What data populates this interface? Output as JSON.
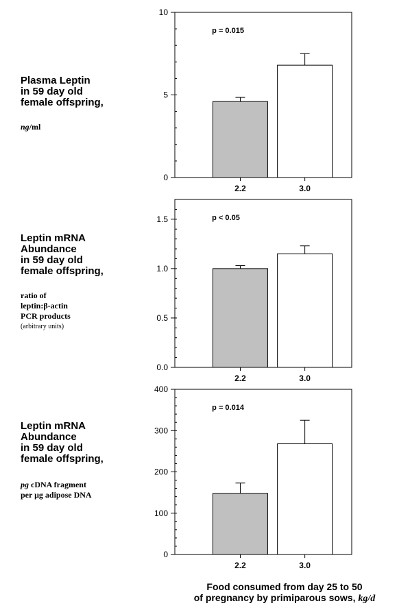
{
  "panels": [
    {
      "title_lines": [
        "Plasma Leptin",
        "in 59 day old",
        "female offspring,"
      ],
      "unit_italic": "ng",
      "unit_rest": "/ml"
    },
    {
      "title_lines": [
        "Leptin mRNA",
        "Abundance",
        "in 59 day old",
        "female offspring,"
      ],
      "unit_lines": [
        "ratio of",
        "leptin:β-actin",
        "PCR products"
      ],
      "unit_note": "(arbitrary units)"
    },
    {
      "title_lines": [
        "Leptin mRNA",
        "Abundance",
        "in 59 day old",
        "female offspring,"
      ],
      "unit_line1_italic": "pg",
      "unit_line1_rest": " cDNA fragment",
      "unit_line2": "per μg adipose DNA"
    }
  ],
  "x_title_line1": "Food consumed from day 25 to 50",
  "x_title_line2": "of pregnancy by primiparous sows,",
  "x_title_unit": "kg/d",
  "colors": {
    "bar_2_2": "#c0c0c0",
    "bar_3_0": "#ffffff",
    "stroke": "#000000"
  },
  "chart_data": [
    {
      "type": "bar",
      "categories": [
        "2.2",
        "3.0"
      ],
      "values": [
        4.6,
        6.8
      ],
      "errors": [
        0.25,
        0.7
      ],
      "ylim": [
        0,
        10
      ],
      "yticks": [
        "0",
        "5",
        "10"
      ],
      "annotation": "p = 0.015"
    },
    {
      "type": "bar",
      "categories": [
        "2.2",
        "3.0"
      ],
      "values": [
        1.0,
        1.15
      ],
      "errors": [
        0.03,
        0.08
      ],
      "ylim": [
        0,
        1.7
      ],
      "yticks": [
        "0.0",
        "0.5",
        "1.0",
        "1.5"
      ],
      "annotation": "p < 0.05"
    },
    {
      "type": "bar",
      "categories": [
        "2.2",
        "3.0"
      ],
      "values": [
        148,
        268
      ],
      "errors": [
        25,
        57
      ],
      "ylim": [
        0,
        400
      ],
      "yticks": [
        "0",
        "100",
        "200",
        "300",
        "400"
      ],
      "annotation": "p = 0.014"
    }
  ]
}
